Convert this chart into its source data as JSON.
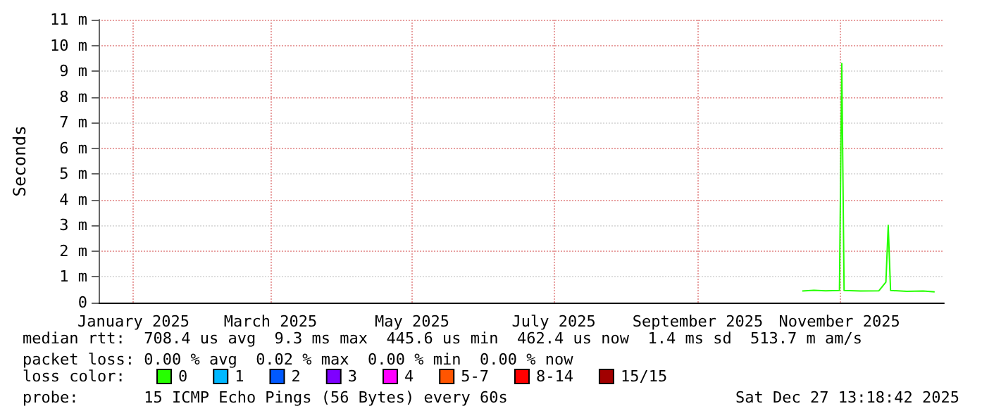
{
  "chart_data": {
    "type": "line",
    "ylabel": "Seconds",
    "xlim": [
      "2025-01-01",
      "2025-12-31"
    ],
    "xticks": [
      {
        "value": "2025-01-16",
        "label": "January 2025"
      },
      {
        "value": "2025-03-16",
        "label": "March 2025"
      },
      {
        "value": "2025-05-16",
        "label": "May 2025"
      },
      {
        "value": "2025-07-16",
        "label": "July 2025"
      },
      {
        "value": "2025-09-16",
        "label": "September 2025"
      },
      {
        "value": "2025-11-16",
        "label": "November 2025"
      }
    ],
    "ylim": [
      0,
      11
    ],
    "yticks": [
      0,
      {
        "value": 1,
        "label": "1 m"
      },
      {
        "value": 2,
        "label": "2 m"
      },
      {
        "value": 3,
        "label": "3 m"
      },
      {
        "value": 4,
        "label": "4 m"
      },
      {
        "value": 5,
        "label": "5 m"
      },
      {
        "value": 6,
        "label": "6 m"
      },
      {
        "value": 7,
        "label": "7 m"
      },
      {
        "value": 8,
        "label": "8 m"
      },
      {
        "value": 9,
        "label": "9 m"
      },
      {
        "value": 10,
        "label": "10 m"
      },
      {
        "value": 11,
        "label": "11 m"
      }
    ],
    "grid": true,
    "legend": "bottom left",
    "marker": "none",
    "line_style": "solid",
    "series": [
      {
        "name": "0",
        "color": "#26ff00",
        "x": [
          "2025-10-31",
          "2025-11-05",
          "2025-11-10",
          "2025-11-16",
          "2025-11-17",
          "2025-11-18",
          "2025-11-25",
          "2025-12-03",
          "2025-12-06",
          "2025-12-07",
          "2025-12-08",
          "2025-12-15",
          "2025-12-22",
          "2025-12-27"
        ],
        "values": [
          0.45,
          0.48,
          0.46,
          0.47,
          9.3,
          0.47,
          0.45,
          0.46,
          0.8,
          3.0,
          0.47,
          0.44,
          0.45,
          0.42
        ]
      },
      {
        "name": "1",
        "color": "#00b8ff"
      },
      {
        "name": "2",
        "color": "#0059ff"
      },
      {
        "name": "3",
        "color": "#7e00ff"
      },
      {
        "name": "4",
        "color": "#ff00ff"
      },
      {
        "name": "5-7",
        "color": "#ff5500"
      },
      {
        "name": "8-14",
        "color": "#ff0000"
      },
      {
        "name": "15/15",
        "color": "#a10000"
      }
    ],
    "annotations": [
      "median rtt:  708.4 us avg  9.3 ms max  445.6 us min  462.4 us now  1.4 ms sd  513.7 m am/s",
      "packet loss: 0.00 % avg  0.02 % max  0.00 % min  0.00 % now",
      "loss color:",
      "probe:       15 ICMP Echo Pings (56 Bytes) every 60s",
      "Sat Dec 27 13:18:42 2025"
    ]
  }
}
